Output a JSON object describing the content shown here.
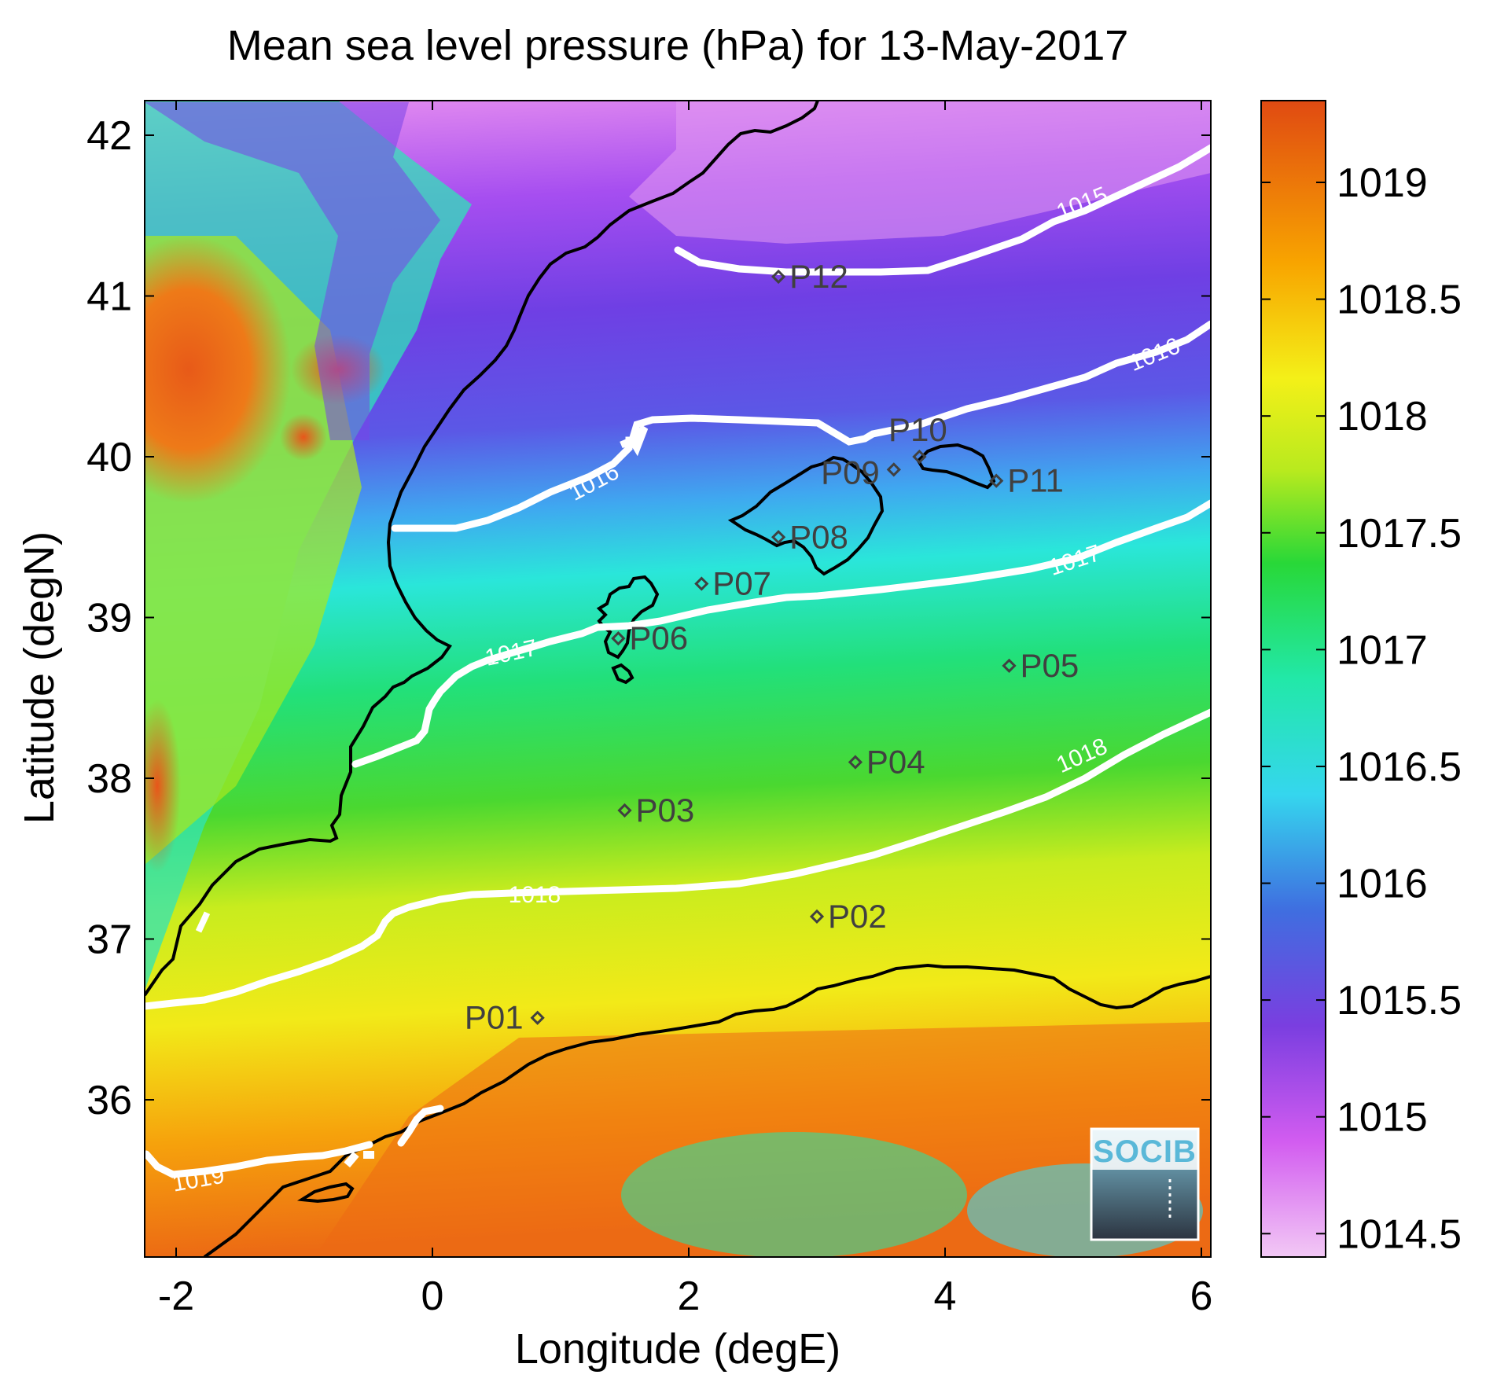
{
  "title": "Mean sea level pressure (hPa) for 13-May-2017",
  "x_axis": {
    "label": "Longitude (degE)",
    "ticks": [
      "-2",
      "0",
      "2",
      "4",
      "6"
    ]
  },
  "y_axis": {
    "label": "Latitude (degN)",
    "ticks": [
      "36",
      "37",
      "38",
      "39",
      "40",
      "41",
      "42"
    ]
  },
  "colorbar": {
    "ticks": [
      "1014.5",
      "1015",
      "1015.5",
      "1016",
      "1016.5",
      "1017",
      "1017.5",
      "1018",
      "1018.5",
      "1019"
    ],
    "range": [
      1014.4,
      1019.35
    ]
  },
  "contour_labels": [
    "1015",
    "1016",
    "1016",
    "1017",
    "1017",
    "1018",
    "1018",
    "1019"
  ],
  "stations": [
    {
      "id": "P01",
      "lon": 0.82,
      "lat": 36.51
    },
    {
      "id": "P02",
      "lon": 3.0,
      "lat": 37.14
    },
    {
      "id": "P03",
      "lon": 1.5,
      "lat": 37.8
    },
    {
      "id": "P04",
      "lon": 3.3,
      "lat": 38.1
    },
    {
      "id": "P05",
      "lon": 4.5,
      "lat": 38.7
    },
    {
      "id": "P06",
      "lon": 1.45,
      "lat": 38.87
    },
    {
      "id": "P07",
      "lon": 2.1,
      "lat": 39.21
    },
    {
      "id": "P08",
      "lon": 2.7,
      "lat": 39.5
    },
    {
      "id": "P09",
      "lon": 3.6,
      "lat": 39.92
    },
    {
      "id": "P10",
      "lon": 3.8,
      "lat": 40.0
    },
    {
      "id": "P11",
      "lon": 4.4,
      "lat": 39.85
    },
    {
      "id": "P12",
      "lon": 2.7,
      "lat": 41.12
    }
  ],
  "logo": {
    "text": "SOCIB"
  },
  "colors": {
    "contour": "#ffffff",
    "coastline": "#000000",
    "station_marker": "#404040"
  }
}
